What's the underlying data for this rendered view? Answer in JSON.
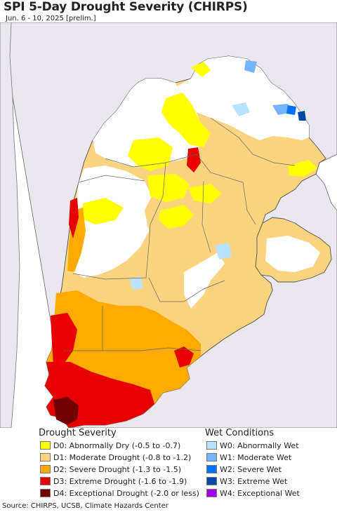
{
  "title": "SPI 5-Day Drought Severity (CHIRPS)",
  "subtitle": "Jun. 6 - 10, 2025 [prelim.]",
  "colors": {
    "ocean": "#ffffff",
    "outside_land": "#eae8ee",
    "d0": "#ffff00",
    "d1": "#fcd37f",
    "d2": "#ffaa00",
    "d3": "#e60000",
    "d4": "#730000",
    "w0": "#b8e4ff",
    "w1": "#73b2ff",
    "w2": "#0070ff",
    "w3": "#0046a6",
    "w4": "#a200e6",
    "border": "#555555"
  },
  "legend": {
    "drought_title": "Drought Severity",
    "wet_title": "Wet Conditions",
    "drought_items": [
      {
        "label": "D0: Abnormally Dry (-0.5 to -0.7)",
        "color": "#ffff00"
      },
      {
        "label": "D1: Moderate Drought (-0.8 to -1.2)",
        "color": "#fcd37f"
      },
      {
        "label": "D2: Severe Drought (-1.3 to -1.5)",
        "color": "#ffaa00"
      },
      {
        "label": "D3: Extreme Drought (-1.6 to -1.9)",
        "color": "#e60000"
      },
      {
        "label": "D4: Exceptional Drought (-2.0 or less)",
        "color": "#730000"
      }
    ],
    "wet_items": [
      {
        "label": "W0: Abnormally Wet",
        "color": "#b8e4ff"
      },
      {
        "label": "W1: Moderate Wet",
        "color": "#73b2ff"
      },
      {
        "label": "W2: Severe Wet",
        "color": "#0070ff"
      },
      {
        "label": "W3: Extreme Wet",
        "color": "#0046a6"
      },
      {
        "label": "W4: Exceptional Wet",
        "color": "#a200e6"
      }
    ]
  },
  "source": "Source: CHIRPS, UCSB, Climate Hazards Center"
}
